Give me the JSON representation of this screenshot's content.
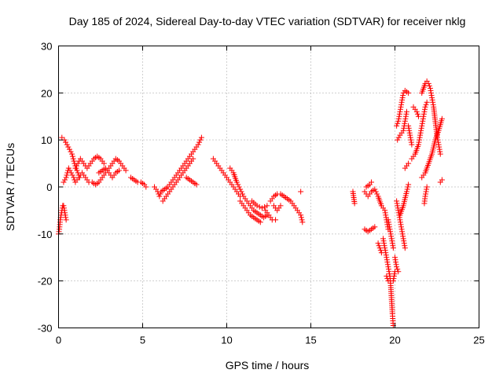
{
  "chart_data": {
    "type": "scatter",
    "title": "Day 185 of 2024, Sidereal Day-to-day VTEC variation (SDTVAR) for receiver nklg",
    "xlabel": "GPS time / hours",
    "ylabel": "SDTVAR / TECUs",
    "xlim": [
      0,
      25
    ],
    "ylim": [
      -30,
      30
    ],
    "xticks": [
      0,
      5,
      10,
      15,
      20,
      25
    ],
    "yticks": [
      -30,
      -20,
      -10,
      0,
      10,
      20,
      30
    ],
    "xtick_labels": [
      "0",
      "5",
      "10",
      "15",
      "20",
      "25"
    ],
    "ytick_labels": [
      "-30",
      "-20",
      "-10",
      "0",
      "10",
      "20",
      "30"
    ],
    "grid": true,
    "marker": "+",
    "color": "#ff0000",
    "series": [
      {
        "name": "SDTVAR",
        "segments": [
          [
            [
              0.0,
              -10
            ],
            [
              0.05,
              -9
            ],
            [
              0.1,
              -7
            ],
            [
              0.15,
              -6
            ],
            [
              0.2,
              -5
            ],
            [
              0.25,
              -4
            ],
            [
              0.3,
              -4
            ],
            [
              0.35,
              -5
            ],
            [
              0.4,
              -6
            ],
            [
              0.45,
              -7
            ]
          ],
          [
            [
              0.2,
              10.5
            ],
            [
              0.35,
              10
            ],
            [
              0.5,
              9
            ],
            [
              0.65,
              8
            ],
            [
              0.8,
              7
            ],
            [
              0.95,
              5
            ],
            [
              1.05,
              4
            ],
            [
              1.15,
              3
            ],
            [
              1.25,
              2
            ]
          ],
          [
            [
              0.3,
              1
            ],
            [
              0.45,
              2
            ],
            [
              0.6,
              4
            ],
            [
              0.75,
              3
            ],
            [
              0.9,
              2
            ],
            [
              1.0,
              1
            ],
            [
              1.2,
              2
            ],
            [
              1.4,
              3
            ],
            [
              1.6,
              2
            ],
            [
              1.8,
              1
            ]
          ],
          [
            [
              1.0,
              4
            ],
            [
              1.15,
              5
            ],
            [
              1.3,
              6
            ],
            [
              1.5,
              5
            ],
            [
              1.7,
              4
            ],
            [
              1.9,
              5
            ],
            [
              2.1,
              6
            ],
            [
              2.3,
              6.5
            ],
            [
              2.5,
              6
            ],
            [
              2.7,
              5
            ]
          ],
          [
            [
              2.0,
              1
            ],
            [
              2.2,
              0.5
            ],
            [
              2.4,
              1
            ],
            [
              2.6,
              2
            ],
            [
              2.8,
              3
            ],
            [
              3.0,
              4
            ],
            [
              3.2,
              5
            ],
            [
              3.4,
              6
            ],
            [
              3.6,
              5.5
            ],
            [
              3.8,
              4.5
            ],
            [
              4.0,
              3.5
            ]
          ],
          [
            [
              2.4,
              3
            ],
            [
              2.6,
              3.5
            ],
            [
              2.8,
              4
            ],
            [
              3.0,
              3
            ],
            [
              3.2,
              2
            ],
            [
              3.4,
              3
            ],
            [
              3.6,
              3.5
            ]
          ],
          [
            [
              4.3,
              2
            ],
            [
              4.5,
              1.5
            ],
            [
              4.7,
              1
            ],
            [
              4.9,
              1
            ],
            [
              5.1,
              0.5
            ],
            [
              5.2,
              0
            ]
          ],
          [
            [
              5.7,
              0
            ],
            [
              5.9,
              -1
            ],
            [
              6.0,
              -2
            ],
            [
              6.1,
              -1
            ],
            [
              6.3,
              -0.5
            ],
            [
              6.5,
              0
            ],
            [
              6.7,
              1
            ],
            [
              6.9,
              2
            ],
            [
              7.1,
              3
            ],
            [
              7.3,
              4
            ],
            [
              7.5,
              5
            ],
            [
              7.7,
              6
            ],
            [
              7.9,
              7
            ],
            [
              8.1,
              8
            ],
            [
              8.3,
              9
            ],
            [
              8.5,
              10.5
            ]
          ],
          [
            [
              6.2,
              -3
            ],
            [
              6.4,
              -2
            ],
            [
              6.6,
              -1
            ],
            [
              6.8,
              0
            ],
            [
              7.0,
              1
            ],
            [
              7.2,
              2
            ],
            [
              7.4,
              3
            ],
            [
              7.6,
              4
            ],
            [
              7.8,
              5
            ],
            [
              8.0,
              6
            ]
          ],
          [
            [
              7.6,
              2
            ],
            [
              7.8,
              1.5
            ],
            [
              8.0,
              1
            ],
            [
              8.2,
              0.5
            ]
          ],
          [
            [
              9.2,
              6
            ],
            [
              9.4,
              5
            ],
            [
              9.6,
              4
            ],
            [
              9.8,
              3
            ],
            [
              10.0,
              2
            ],
            [
              10.2,
              1
            ],
            [
              10.4,
              0
            ],
            [
              10.6,
              -1
            ],
            [
              10.8,
              -2
            ]
          ],
          [
            [
              10.2,
              4
            ],
            [
              10.4,
              3
            ],
            [
              10.6,
              1
            ],
            [
              10.8,
              -0.5
            ],
            [
              11.0,
              -2
            ],
            [
              11.2,
              -3
            ],
            [
              11.4,
              -4
            ],
            [
              11.6,
              -5
            ],
            [
              11.8,
              -5.5
            ],
            [
              12.0,
              -6
            ],
            [
              12.2,
              -6.5
            ],
            [
              12.4,
              -6
            ]
          ],
          [
            [
              10.8,
              -3
            ],
            [
              11.0,
              -4
            ],
            [
              11.2,
              -5
            ],
            [
              11.4,
              -6
            ],
            [
              11.6,
              -6.5
            ],
            [
              11.8,
              -7
            ],
            [
              12.0,
              -7.5
            ]
          ],
          [
            [
              11.5,
              -3
            ],
            [
              11.8,
              -4
            ],
            [
              12.1,
              -4.5
            ],
            [
              12.4,
              -4
            ]
          ],
          [
            [
              12.3,
              -5
            ],
            [
              12.5,
              -6
            ],
            [
              12.7,
              -7
            ],
            [
              12.9,
              -7
            ]
          ],
          [
            [
              12.6,
              -3
            ],
            [
              12.8,
              -2
            ],
            [
              13.0,
              -1.5
            ],
            [
              13.2,
              -1.5
            ],
            [
              13.4,
              -2
            ],
            [
              13.6,
              -2.5
            ],
            [
              13.8,
              -3
            ],
            [
              14.0,
              -4
            ],
            [
              14.2,
              -5
            ],
            [
              14.4,
              -6
            ],
            [
              14.5,
              -7.5
            ]
          ],
          [
            [
              12.8,
              -4
            ],
            [
              13.0,
              -5
            ],
            [
              13.2,
              -4
            ]
          ],
          [
            [
              14.4,
              -1
            ]
          ],
          [
            [
              17.5,
              -1
            ],
            [
              17.6,
              -3.5
            ]
          ],
          [
            [
              18.2,
              -1
            ],
            [
              18.4,
              -2
            ],
            [
              18.6,
              -1
            ],
            [
              18.8,
              -0.5
            ],
            [
              19.0,
              -2
            ],
            [
              19.2,
              -4
            ],
            [
              19.4,
              -5
            ],
            [
              19.5,
              -7
            ],
            [
              19.6,
              -9
            ]
          ],
          [
            [
              18.3,
              0
            ],
            [
              18.5,
              0.5
            ],
            [
              18.6,
              1
            ]
          ],
          [
            [
              18.2,
              -9
            ],
            [
              18.4,
              -9.5
            ],
            [
              18.6,
              -9
            ],
            [
              18.8,
              -8.5
            ]
          ],
          [
            [
              19.0,
              -12
            ],
            [
              19.1,
              -13
            ],
            [
              19.2,
              -14
            ]
          ],
          [
            [
              19.3,
              -11
            ],
            [
              19.4,
              -13
            ],
            [
              19.5,
              -15
            ],
            [
              19.6,
              -17
            ],
            [
              19.7,
              -19
            ],
            [
              19.75,
              -21
            ],
            [
              19.8,
              -24
            ],
            [
              19.85,
              -27
            ],
            [
              19.9,
              -29.5
            ]
          ],
          [
            [
              19.5,
              -19
            ],
            [
              19.6,
              -20
            ]
          ],
          [
            [
              19.6,
              -7
            ],
            [
              19.7,
              -9
            ],
            [
              19.8,
              -11
            ],
            [
              19.9,
              -13
            ]
          ],
          [
            [
              20.0,
              -15
            ],
            [
              20.1,
              -17
            ],
            [
              20.2,
              -18
            ]
          ],
          [
            [
              20.1,
              -3
            ],
            [
              20.2,
              -5
            ],
            [
              20.3,
              -7
            ],
            [
              20.4,
              -9
            ],
            [
              20.5,
              -11
            ],
            [
              20.6,
              -13
            ]
          ],
          [
            [
              20.3,
              -6
            ],
            [
              20.5,
              -4
            ],
            [
              20.7,
              -1
            ],
            [
              20.8,
              0.5
            ]
          ],
          [
            [
              19.9,
              -20
            ],
            [
              20.0,
              -18
            ]
          ],
          [
            [
              20.1,
              13
            ],
            [
              20.2,
              14
            ],
            [
              20.3,
              16
            ],
            [
              20.4,
              18
            ],
            [
              20.5,
              20
            ],
            [
              20.6,
              20.5
            ],
            [
              20.8,
              20
            ]
          ],
          [
            [
              20.15,
              10
            ],
            [
              20.3,
              11
            ],
            [
              20.5,
              12
            ],
            [
              20.6,
              14
            ],
            [
              20.7,
              16
            ]
          ],
          [
            [
              20.8,
              13
            ],
            [
              20.9,
              11
            ],
            [
              21.0,
              9
            ]
          ],
          [
            [
              21.0,
              6
            ],
            [
              21.2,
              7
            ],
            [
              21.4,
              9
            ],
            [
              21.5,
              11
            ],
            [
              21.6,
              13
            ],
            [
              21.7,
              15
            ],
            [
              21.8,
              17
            ],
            [
              21.9,
              18
            ]
          ],
          [
            [
              21.1,
              17
            ],
            [
              21.3,
              16
            ],
            [
              21.4,
              15
            ]
          ],
          [
            [
              21.6,
              20
            ],
            [
              21.8,
              22
            ],
            [
              21.9,
              22.5
            ],
            [
              22.0,
              22
            ],
            [
              22.1,
              21
            ],
            [
              22.2,
              19
            ],
            [
              22.3,
              17
            ],
            [
              22.4,
              14
            ],
            [
              22.5,
              11
            ],
            [
              22.6,
              9
            ],
            [
              22.7,
              7
            ]
          ],
          [
            [
              21.6,
              2
            ],
            [
              21.8,
              3
            ],
            [
              22.0,
              5
            ],
            [
              22.2,
              7
            ],
            [
              22.4,
              10
            ],
            [
              22.6,
              12
            ],
            [
              22.8,
              14.5
            ]
          ],
          [
            [
              21.75,
              -3.5
            ],
            [
              21.8,
              -2
            ],
            [
              21.9,
              0
            ]
          ],
          [
            [
              22.7,
              1
            ],
            [
              22.8,
              1.5
            ]
          ],
          [
            [
              20.6,
              4
            ],
            [
              20.8,
              5
            ]
          ]
        ]
      }
    ]
  }
}
